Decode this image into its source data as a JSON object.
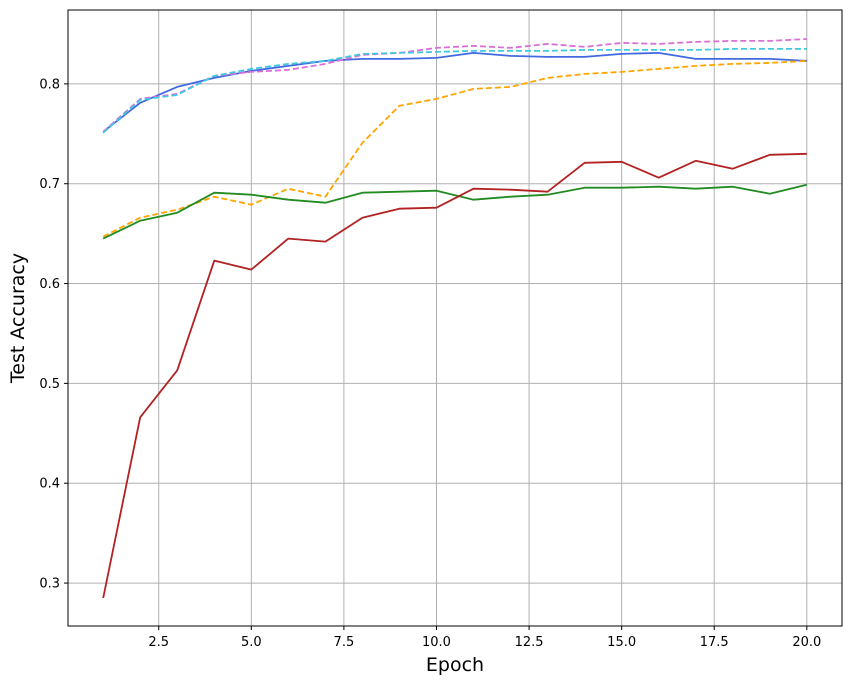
{
  "chart_data": {
    "type": "line",
    "xlabel": "Epoch",
    "ylabel": "Test Accuracy",
    "xlim": [
      0.05,
      20.95
    ],
    "ylim": [
      0.257,
      0.874
    ],
    "grid": true,
    "x": [
      1,
      2,
      3,
      4,
      5,
      6,
      7,
      8,
      9,
      10,
      11,
      12,
      13,
      14,
      15,
      16,
      17,
      18,
      19,
      20
    ],
    "x_ticks": [
      2.5,
      5.0,
      7.5,
      10.0,
      12.5,
      15.0,
      17.5,
      20.0
    ],
    "x_tick_labels": [
      "2.5",
      "5.0",
      "7.5",
      "10.0",
      "12.5",
      "15.0",
      "17.5",
      "20.0"
    ],
    "y_ticks": [
      0.3,
      0.4,
      0.5,
      0.6,
      0.7,
      0.8
    ],
    "y_tick_labels": [
      "0.3",
      "0.4",
      "0.5",
      "0.6",
      "0.7",
      "0.8"
    ],
    "series": [
      {
        "color": "#4169e1",
        "style": "solid",
        "values": [
          0.752,
          0.781,
          0.797,
          0.806,
          0.813,
          0.818,
          0.823,
          0.825,
          0.825,
          0.826,
          0.831,
          0.828,
          0.827,
          0.827,
          0.83,
          0.831,
          0.825,
          0.825,
          0.825,
          0.823
        ]
      },
      {
        "color": "#da70d6",
        "style": "dashed",
        "values": [
          0.752,
          0.785,
          0.79,
          0.808,
          0.812,
          0.814,
          0.82,
          0.829,
          0.831,
          0.836,
          0.838,
          0.836,
          0.84,
          0.837,
          0.841,
          0.84,
          0.842,
          0.843,
          0.843,
          0.845
        ]
      },
      {
        "color": "#40c8e0",
        "style": "dashed",
        "values": [
          0.751,
          0.784,
          0.789,
          0.808,
          0.815,
          0.82,
          0.823,
          0.83,
          0.831,
          0.832,
          0.833,
          0.833,
          0.833,
          0.834,
          0.834,
          0.834,
          0.834,
          0.835,
          0.835,
          0.835
        ]
      },
      {
        "color": "#ffa500",
        "style": "dashed",
        "values": [
          0.647,
          0.666,
          0.674,
          0.687,
          0.679,
          0.695,
          0.687,
          0.741,
          0.778,
          0.785,
          0.795,
          0.797,
          0.806,
          0.81,
          0.812,
          0.815,
          0.818,
          0.82,
          0.821,
          0.823
        ]
      },
      {
        "color": "#228b22",
        "style": "solid",
        "values": [
          0.645,
          0.663,
          0.671,
          0.691,
          0.689,
          0.684,
          0.681,
          0.691,
          0.692,
          0.693,
          0.684,
          0.687,
          0.689,
          0.696,
          0.696,
          0.697,
          0.695,
          0.697,
          0.69,
          0.699
        ]
      },
      {
        "color": "#b22222",
        "style": "solid",
        "values": [
          0.285,
          0.466,
          0.513,
          0.623,
          0.614,
          0.645,
          0.642,
          0.666,
          0.675,
          0.676,
          0.695,
          0.694,
          0.692,
          0.721,
          0.722,
          0.706,
          0.723,
          0.715,
          0.729,
          0.73
        ]
      }
    ]
  }
}
